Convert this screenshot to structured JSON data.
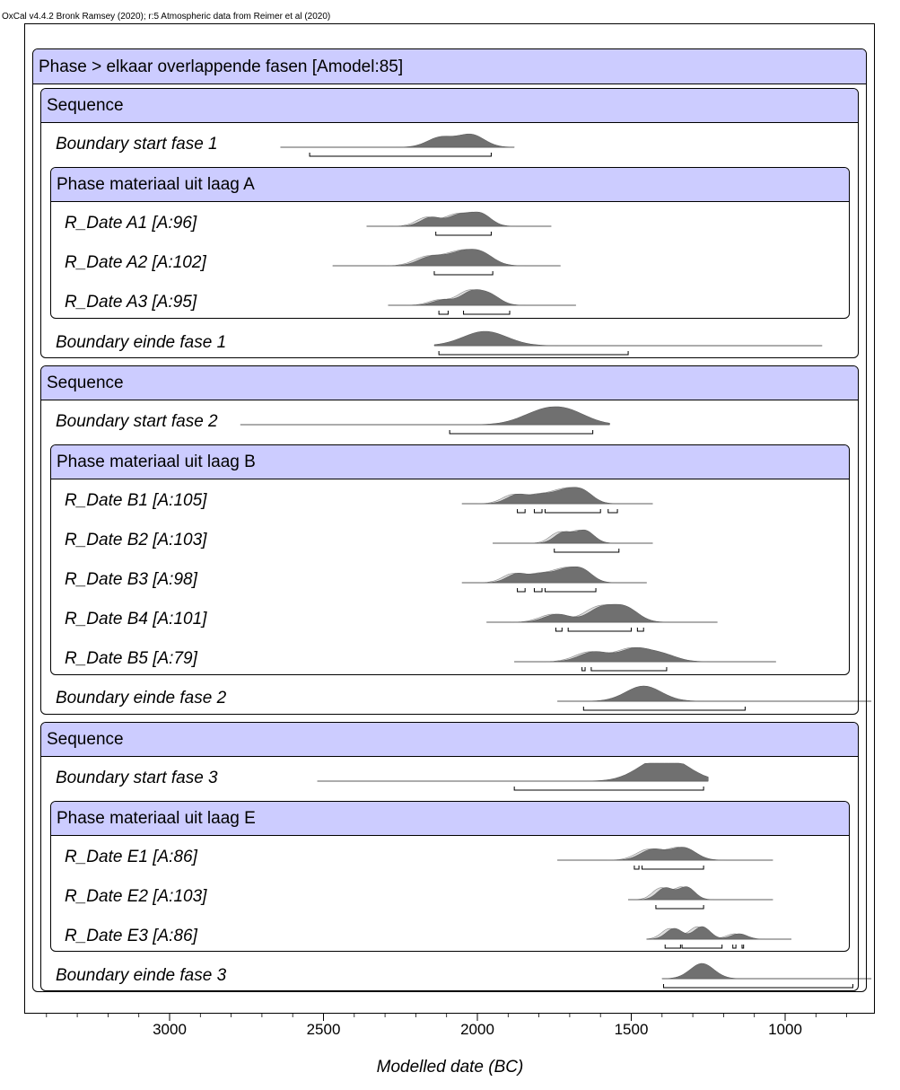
{
  "credit": "OxCal v4.4.2 Bronk Ramsey (2020); r:5 Atmospheric data from Reimer et al (2020)",
  "chart_data": {
    "type": "oxcal-multiplot",
    "xlabel": "Modelled date (BC)",
    "xlim": [
      3450,
      720
    ],
    "xticks": [
      3000,
      2500,
      2000,
      1500,
      1000
    ],
    "x_reversed": true,
    "root": {
      "label": "Phase > elkaar overlappende fasen [Amodel:85]"
    },
    "sequences": [
      {
        "label": "Sequence",
        "start": {
          "label": "Boundary start fase 1",
          "range": [
            2640,
            1880
          ],
          "peaks": [
            [
              2120,
              0.55
            ],
            [
              2020,
              0.7
            ]
          ],
          "hpd": [
            [
              2545,
              1955
            ]
          ]
        },
        "phase": {
          "label": "Phase materiaal uit laag A",
          "dates": [
            {
              "label": "R_Date A1 [A:96]",
              "range": [
                2360,
                1760
              ],
              "peaks": [
                [
                  2150,
                  0.5
                ],
                [
                  2060,
                  0.6
                ],
                [
                  1990,
                  0.7
                ]
              ],
              "hpd": [
                [
                  2135,
                  1955
                ]
              ]
            },
            {
              "label": "R_Date A2 [A:102]",
              "range": [
                2470,
                1730
              ],
              "peaks": [
                [
                  2150,
                  0.5
                ],
                [
                  2060,
                  0.6
                ],
                [
                  1990,
                  0.7
                ]
              ],
              "hpd": [
                [
                  2140,
                  1950
                ]
              ]
            },
            {
              "label": "R_Date A3 [A:95]",
              "range": [
                2290,
                1680
              ],
              "peaks": [
                [
                  2110,
                  0.3
                ],
                [
                  2020,
                  0.7
                ],
                [
                  1960,
                  0.55
                ]
              ],
              "hpd": [
                [
                  2125,
                  2095
                ],
                [
                  2045,
                  1895
                ]
              ]
            }
          ]
        },
        "end": {
          "label": "Boundary einde fase 1",
          "range": [
            2140,
            880
          ],
          "peaks": [
            [
              1975,
              0.8
            ]
          ],
          "hpd": [
            [
              2125,
              1510
            ]
          ]
        }
      },
      {
        "label": "Sequence",
        "start": {
          "label": "Boundary start fase 2",
          "range": [
            2770,
            1570
          ],
          "peaks": [
            [
              1800,
              0.55
            ],
            [
              1710,
              0.7
            ]
          ],
          "hpd": [
            [
              2090,
              1625
            ]
          ]
        },
        "phase": {
          "label": "Phase materiaal uit laag B",
          "dates": [
            {
              "label": "R_Date B1 [A:105]",
              "range": [
                2050,
                1430
              ],
              "peaks": [
                [
                  1870,
                  0.5
                ],
                [
                  1790,
                  0.45
                ],
                [
                  1720,
                  0.6
                ],
                [
                  1660,
                  0.7
                ]
              ],
              "hpd": [
                [
                  1870,
                  1845
                ],
                [
                  1815,
                  1790
                ],
                [
                  1780,
                  1600
                ],
                [
                  1575,
                  1545
                ]
              ]
            },
            {
              "label": "R_Date B2 [A:103]",
              "range": [
                1950,
                1430
              ],
              "peaks": [
                [
                  1720,
                  0.6
                ],
                [
                  1650,
                  0.7
                ]
              ],
              "hpd": [
                [
                  1750,
                  1540
                ]
              ]
            },
            {
              "label": "R_Date B3 [A:98]",
              "range": [
                2050,
                1450
              ],
              "peaks": [
                [
                  1870,
                  0.5
                ],
                [
                  1790,
                  0.45
                ],
                [
                  1720,
                  0.6
                ],
                [
                  1660,
                  0.7
                ]
              ],
              "hpd": [
                [
                  1870,
                  1845
                ],
                [
                  1815,
                  1790
                ],
                [
                  1780,
                  1615
                ]
              ]
            },
            {
              "label": "R_Date B4 [A:101]",
              "range": [
                1970,
                1220
              ],
              "peaks": [
                [
                  1740,
                  0.45
                ],
                [
                  1600,
                  0.75
                ],
                [
                  1520,
                  0.8
                ]
              ],
              "hpd": [
                [
                  1745,
                  1725
                ],
                [
                  1705,
                  1500
                ],
                [
                  1480,
                  1460
                ]
              ]
            },
            {
              "label": "R_Date B5 [A:79]",
              "range": [
                1880,
                1030
              ],
              "peaks": [
                [
                  1620,
                  0.55
                ],
                [
                  1490,
                  0.7
                ],
                [
                  1400,
                  0.4
                ]
              ],
              "hpd": [
                [
                  1660,
                  1650
                ],
                [
                  1630,
                  1385
                ]
              ]
            }
          ]
        },
        "end": {
          "label": "Boundary einde fase 2",
          "range": [
            1740,
            720
          ],
          "peaks": [
            [
              1460,
              0.85
            ]
          ],
          "hpd": [
            [
              1655,
              1130
            ]
          ]
        }
      },
      {
        "label": "Sequence",
        "start": {
          "label": "Boundary start fase 3",
          "range": [
            2520,
            1250
          ],
          "peaks": [
            [
              1420,
              0.7
            ],
            [
              1370,
              0.75
            ]
          ],
          "hpd": [
            [
              1880,
              1265
            ]
          ]
        },
        "phase": {
          "label": "Phase materiaal uit laag E",
          "dates": [
            {
              "label": "R_Date E1 [A:86]",
              "range": [
                1740,
                1040
              ],
              "peaks": [
                [
                  1430,
                  0.6
                ],
                [
                  1330,
                  0.7
                ]
              ],
              "hpd": [
                [
                  1490,
                  1475
                ],
                [
                  1465,
                  1265
                ]
              ]
            },
            {
              "label": "R_Date E2 [A:103]",
              "range": [
                1510,
                1040
              ],
              "peaks": [
                [
                  1390,
                  0.65
                ],
                [
                  1320,
                  0.7
                ]
              ],
              "hpd": [
                [
                  1420,
                  1265
                ]
              ]
            },
            {
              "label": "R_Date E3 [A:86]",
              "range": [
                1450,
                980
              ],
              "peaks": [
                [
                  1360,
                  0.6
                ],
                [
                  1270,
                  0.7
                ],
                [
                  1150,
                  0.3
                ]
              ],
              "hpd": [
                [
                  1390,
                  1340
                ],
                [
                  1335,
                  1205
                ],
                [
                  1170,
                  1160
                ],
                [
                  1140,
                  1135
                ]
              ]
            }
          ]
        },
        "end": {
          "label": "Boundary einde fase 3",
          "range": [
            1400,
            720
          ],
          "peaks": [
            [
              1270,
              0.85
            ]
          ],
          "hpd": [
            [
              1395,
              780
            ]
          ]
        }
      }
    ]
  }
}
